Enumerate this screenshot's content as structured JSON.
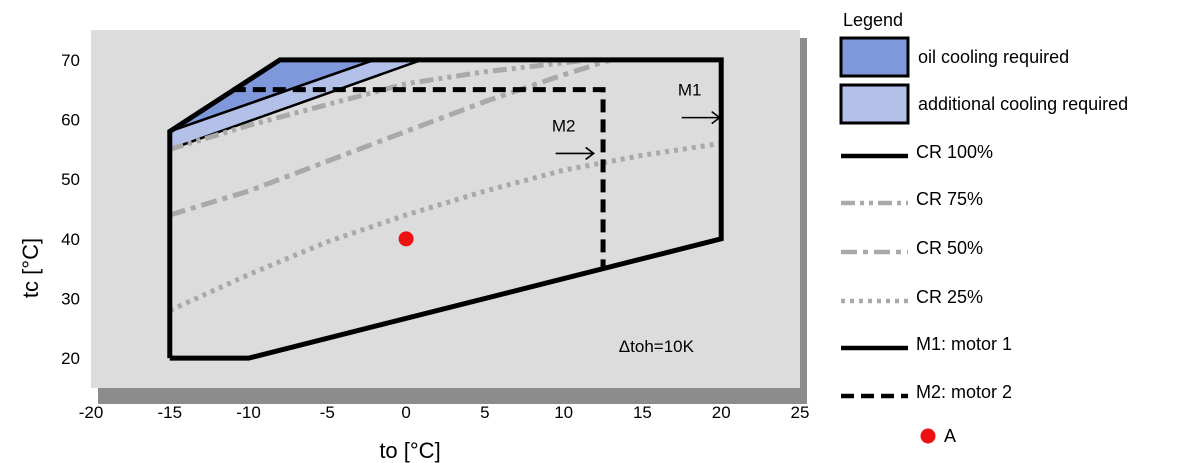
{
  "chart_data": {
    "type": "line",
    "title": "",
    "xlabel": "to [°C]",
    "ylabel": "tc [°C]",
    "xlim": [
      -20,
      25
    ],
    "ylim": [
      15,
      75
    ],
    "xticks": [
      -20,
      -15,
      -10,
      -5,
      0,
      5,
      10,
      15,
      20,
      25
    ],
    "yticks": [
      20,
      30,
      40,
      50,
      60,
      70
    ],
    "grid": false,
    "legend_position": "right",
    "legend_title": "Legend",
    "colors": {
      "plot_bg": "#dcdcdc",
      "shadow": "#8c8c8c",
      "oil_fill": "#7f97db",
      "additional_fill": "#b3c1e8",
      "cr_lines": "#a9a9a9",
      "motor_lines": "#000000",
      "point_a": "#ee1111"
    },
    "regions": [
      {
        "name": "oil cooling required",
        "points": [
          [
            -15,
            58
          ],
          [
            -8,
            70
          ],
          [
            -2,
            70
          ],
          [
            -15,
            58
          ]
        ]
      },
      {
        "name": "additional cooling required",
        "points": [
          [
            -15,
            58
          ],
          [
            -2,
            70
          ],
          [
            1,
            70
          ],
          [
            -15,
            55
          ]
        ]
      }
    ],
    "series": [
      {
        "name": "M1: motor 1",
        "style": "solid",
        "points": [
          [
            -15,
            20
          ],
          [
            -10,
            20
          ],
          [
            20,
            40
          ],
          [
            20,
            70
          ],
          [
            -8,
            70
          ],
          [
            -15,
            58
          ],
          [
            -15,
            20
          ]
        ]
      },
      {
        "name": "M2: motor 2",
        "style": "dashed",
        "points": [
          [
            -11,
            65
          ],
          [
            12.5,
            65
          ],
          [
            12.5,
            35
          ]
        ]
      },
      {
        "name": "CR 75%",
        "style": "dash-dot-dot",
        "points": [
          [
            -15,
            55
          ],
          [
            -10,
            59
          ],
          [
            -5,
            62.5
          ],
          [
            0,
            66
          ],
          [
            5,
            68
          ],
          [
            10,
            69.5
          ],
          [
            11.5,
            70
          ]
        ]
      },
      {
        "name": "CR 50%",
        "style": "dash-dot",
        "points": [
          [
            -15,
            44
          ],
          [
            -10,
            48
          ],
          [
            -5,
            53
          ],
          [
            0,
            58
          ],
          [
            5,
            63
          ],
          [
            10,
            67.5
          ],
          [
            13,
            70
          ]
        ]
      },
      {
        "name": "CR 25%",
        "style": "dotted",
        "points": [
          [
            -15,
            28
          ],
          [
            -10,
            34
          ],
          [
            -5,
            39.5
          ],
          [
            0,
            44
          ],
          [
            5,
            48
          ],
          [
            10,
            51.5
          ],
          [
            15,
            54
          ],
          [
            20,
            56
          ]
        ]
      }
    ],
    "points": [
      {
        "name": "A",
        "x": 0,
        "y": 40
      }
    ],
    "annotations": [
      {
        "text": "M1",
        "x": 18,
        "y": 64,
        "arrow": true
      },
      {
        "text": "M2",
        "x": 10,
        "y": 58,
        "arrow": true
      },
      {
        "text": "Δtoh=10K",
        "x": 13.5,
        "y": 21
      }
    ],
    "legend": [
      {
        "label": "oil cooling required",
        "kind": "fill-oil"
      },
      {
        "label": "additional cooling required",
        "kind": "fill-additional"
      },
      {
        "label": "CR 100%",
        "kind": "solid-black"
      },
      {
        "label": "CR 75%",
        "kind": "dash-dot-dot"
      },
      {
        "label": "CR 50%",
        "kind": "dash-dot"
      },
      {
        "label": "CR 25%",
        "kind": "dotted"
      },
      {
        "label": "M1: motor 1",
        "kind": "solid-black"
      },
      {
        "label": "M2: motor 2",
        "kind": "dashed-black"
      },
      {
        "label": "A",
        "kind": "point"
      }
    ]
  }
}
